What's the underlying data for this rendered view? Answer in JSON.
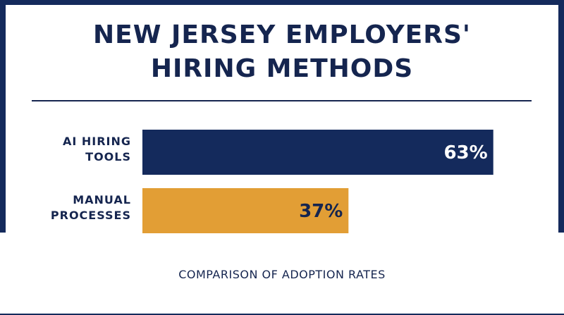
{
  "title_lines": [
    "NEW JERSEY EMPLOYERS'",
    "HIRING METHODS"
  ],
  "caption": "COMPARISON OF ADOPTION RATES",
  "colors": {
    "navy": "#15254f",
    "bar_ai": "#142a5c",
    "bar_manual": "#e29e35",
    "value_on_navy": "#ffffff",
    "value_on_gold": "#15254f"
  },
  "chart_data": {
    "type": "bar",
    "orientation": "horizontal",
    "categories": [
      [
        "AI HIRING",
        "TOOLS"
      ],
      [
        "MANUAL",
        "PROCESSES"
      ]
    ],
    "values": [
      63,
      37
    ],
    "value_labels": [
      "63%",
      "37%"
    ],
    "unit": "%",
    "xlim": [
      0,
      100
    ],
    "grid": false,
    "legend": "none"
  }
}
